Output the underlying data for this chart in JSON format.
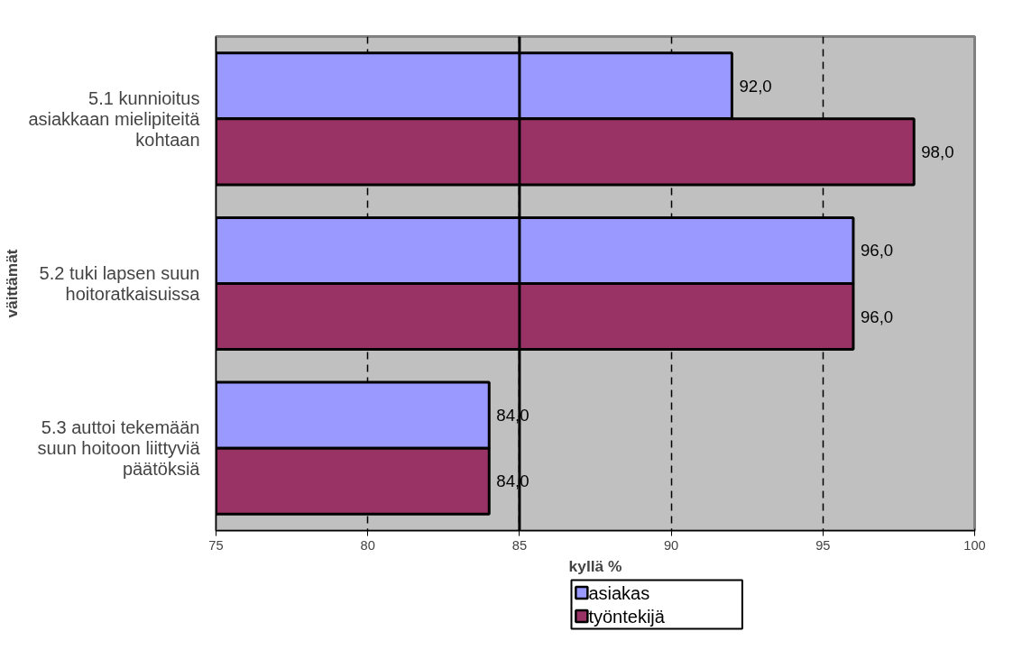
{
  "chart_data": {
    "type": "bar",
    "orientation": "horizontal",
    "xlabel": "kyllä %",
    "ylabel": "väittämät",
    "categories": [
      "5.1 kunnioitus asiakkaan mielipiteitä kohtaan",
      "5.2 tuki lapsen suun hoitoratkaisuissa",
      "5.3 auttoi tekemään suun hoitoon liittyviä päätöksiä"
    ],
    "series": [
      {
        "name": "asiakas",
        "color": "#9999ff",
        "values": [
          92.0,
          96.0,
          84.0
        ],
        "value_labels": [
          "92,0",
          "96,0",
          "84,0"
        ]
      },
      {
        "name": "työntekijä",
        "color": "#993366",
        "values": [
          98.0,
          96.0,
          84.0
        ],
        "value_labels": [
          "98,0",
          "96,0",
          "84,0"
        ]
      }
    ],
    "xlim": [
      75,
      100
    ],
    "xticks": [
      75,
      80,
      85,
      90,
      95,
      100
    ],
    "grid": "x",
    "legend": "bottom",
    "ref_lines": [
      {
        "axis": "x",
        "value": 85,
        "label": null
      }
    ]
  }
}
